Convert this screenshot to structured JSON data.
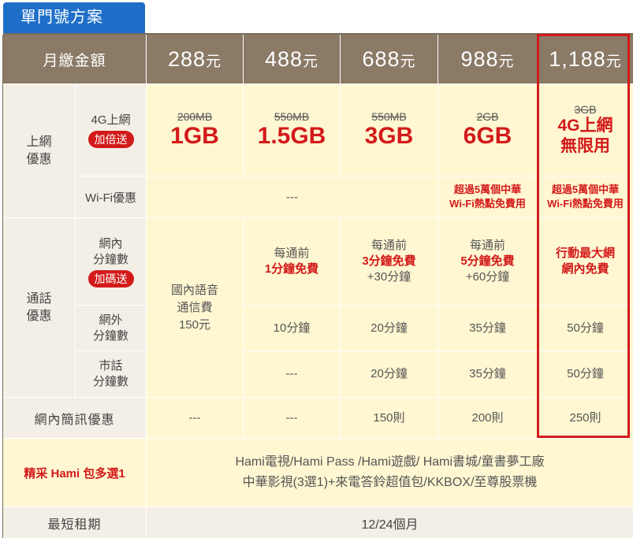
{
  "tab_title": "單門號方案",
  "header": {
    "label": "月繳金額",
    "plans": [
      {
        "amount": "288",
        "unit": "元"
      },
      {
        "amount": "488",
        "unit": "元"
      },
      {
        "amount": "688",
        "unit": "元"
      },
      {
        "amount": "988",
        "unit": "元"
      },
      {
        "amount": "1,188",
        "unit": "元"
      }
    ]
  },
  "data_section": {
    "label": "上網\n優惠",
    "mobile_label": "4G上網",
    "mobile_badge": "加倍送",
    "mobile": [
      {
        "old": "200MB",
        "new": "1GB"
      },
      {
        "old": "550MB",
        "new": "1.5GB"
      },
      {
        "old": "550MB",
        "new": "3GB"
      },
      {
        "old": "2GB",
        "new": "6GB"
      },
      {
        "old": "3GB",
        "new": "4G上網\n無限用"
      }
    ],
    "wifi_label": "Wi-Fi優惠",
    "wifi_none": "---",
    "wifi_988": "超過5萬個中華\nWi-Fi熱點免費用",
    "wifi_1188": "超過5萬個中華\nWi-Fi熱點免費用"
  },
  "call_section": {
    "label": "通話\n優惠",
    "onnet_label": "網內\n分鐘數",
    "onnet_badge": "加碼送",
    "domestic_288": "國內語音\n通信費\n150元",
    "onnet": [
      {
        "l1": "每通前",
        "l2": "1分鐘免費",
        "l3": ""
      },
      {
        "l1": "每通前",
        "l2": "3分鐘免費",
        "l3": "+30分鐘"
      },
      {
        "l1": "每通前",
        "l2": "5分鐘免費",
        "l3": "+60分鐘"
      },
      {
        "l1": "",
        "l2": "行動最大網\n網內免費",
        "l3": ""
      }
    ],
    "offnet_label": "網外\n分鐘數",
    "offnet": [
      "10分鐘",
      "20分鐘",
      "35分鐘",
      "50分鐘"
    ],
    "local_label": "市話\n分鐘數",
    "local": [
      "---",
      "20分鐘",
      "35分鐘",
      "50分鐘"
    ]
  },
  "sms": {
    "label": "網內簡訊優惠",
    "values": [
      "---",
      "---",
      "150則",
      "200則",
      "250則"
    ]
  },
  "hami": {
    "label": "精采 Hami 包多選1",
    "line1": "Hami電視/Hami Pass /Hami遊戲/ Hami書城/童書夢工廠",
    "line2": "中華影視(3選1)+來電答鈴超值包/KKBOX/至尊股票機"
  },
  "term": {
    "label": "最短租期",
    "value": "12/24個月"
  }
}
